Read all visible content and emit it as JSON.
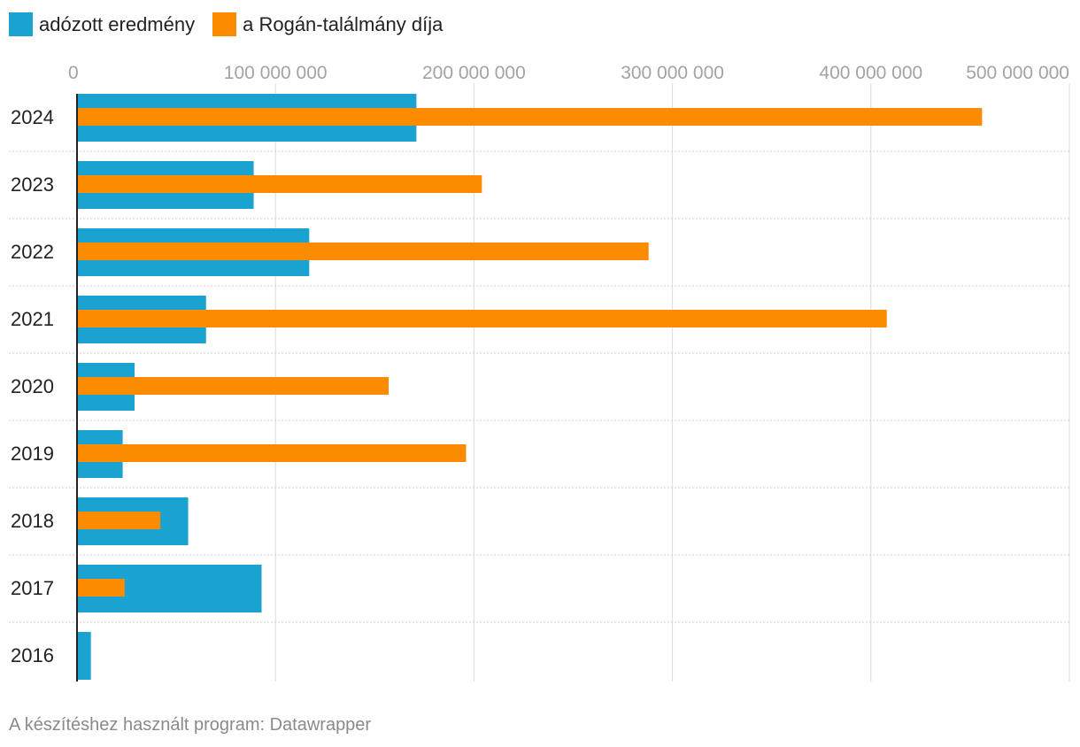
{
  "legend": [
    {
      "label": "adózott eredmény",
      "color": "#1aa2d0"
    },
    {
      "label": "a Rogán-találmány díja",
      "color": "#fd8b00"
    }
  ],
  "footer": "A készítéshez használt program: Datawrapper",
  "chart_data": {
    "type": "bar",
    "orientation": "horizontal",
    "categories": [
      "2024",
      "2023",
      "2022",
      "2021",
      "2020",
      "2019",
      "2018",
      "2017",
      "2016"
    ],
    "series": [
      {
        "name": "adózott eredmény",
        "color": "#1aa2d0",
        "values": [
          171000000,
          89000000,
          117000000,
          65000000,
          29000000,
          23000000,
          56000000,
          93000000,
          7000000
        ]
      },
      {
        "name": "a Rogán-találmány díja",
        "color": "#fd8b00",
        "values": [
          456000000,
          204000000,
          288000000,
          408000000,
          157000000,
          196000000,
          42000000,
          24000000,
          null
        ]
      }
    ],
    "xlim": [
      0,
      500000000
    ],
    "xticks": [
      {
        "value": 0,
        "label": "0"
      },
      {
        "value": 100000000,
        "label": "100 000 000"
      },
      {
        "value": 200000000,
        "label": "200 000 000"
      },
      {
        "value": 300000000,
        "label": "300 000 000"
      },
      {
        "value": 400000000,
        "label": "400 000 000"
      },
      {
        "value": 500000000,
        "label": "500 000 000"
      }
    ],
    "grid": true,
    "legend_position": "top-left"
  }
}
